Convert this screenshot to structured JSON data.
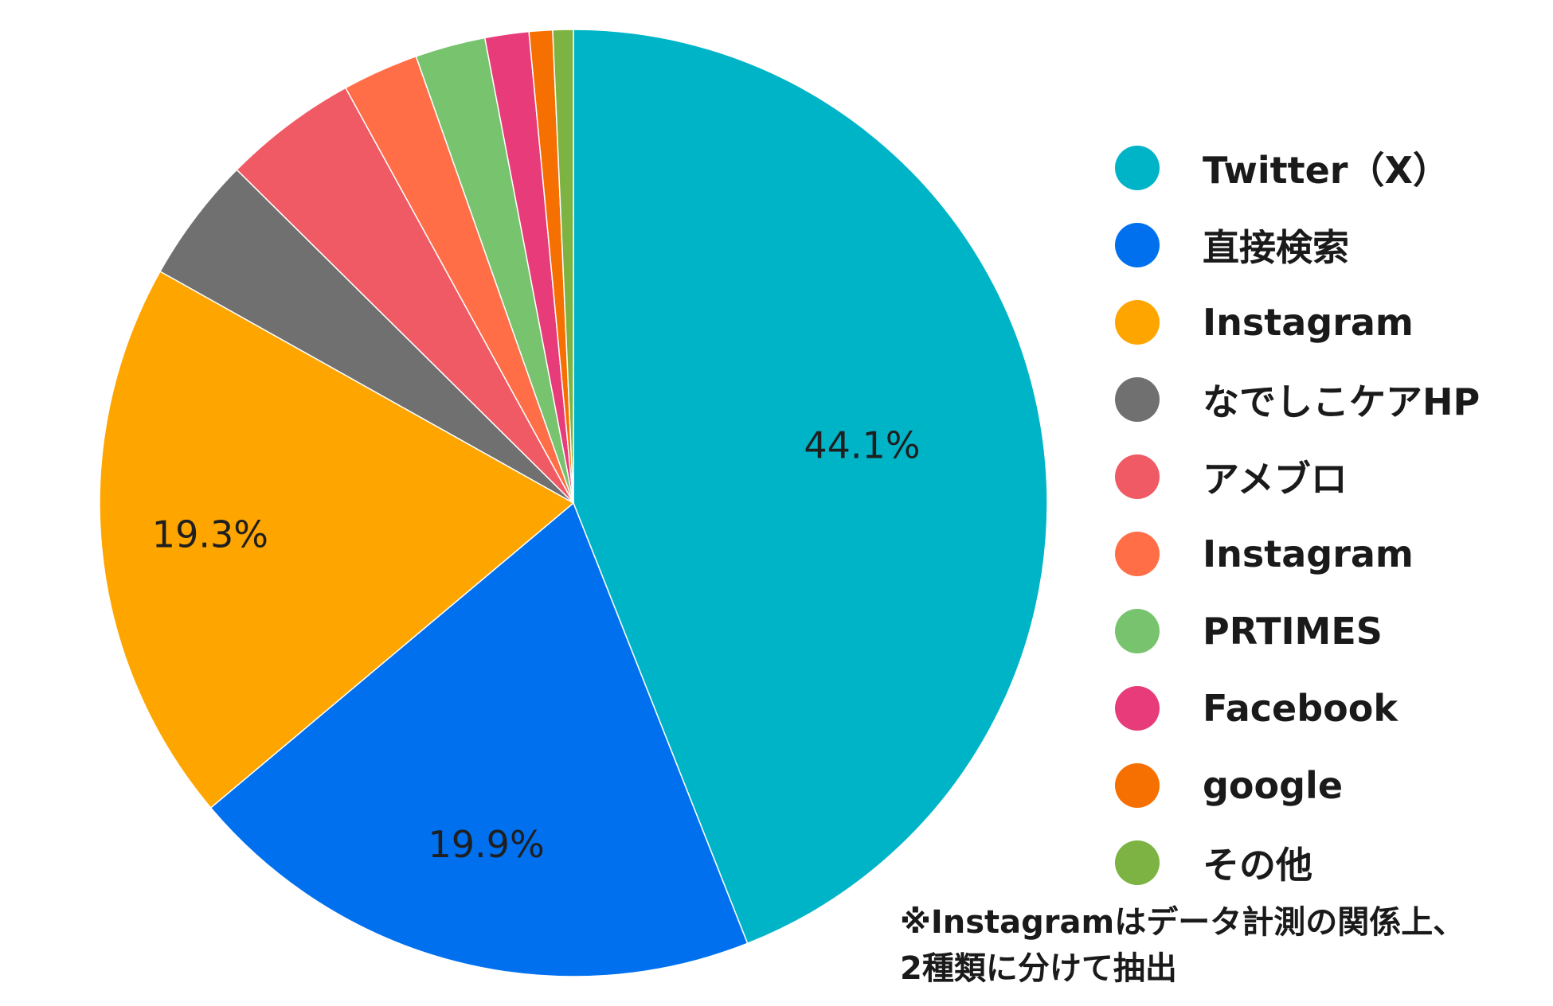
{
  "chart_data": {
    "type": "pie",
    "slices": [
      {
        "label": "Twitter（X）",
        "value": 44.1,
        "color": "#00B4C8",
        "data_label": "44.1%"
      },
      {
        "label": "直接検索",
        "value": 19.9,
        "color": "#0070EE",
        "data_label": "19.9%"
      },
      {
        "label": "Instagram",
        "value": 19.3,
        "color": "#FFA500",
        "data_label": "19.3%"
      },
      {
        "label": "なでしこケアHP",
        "value": 4.3,
        "color": "#707070",
        "data_label": ""
      },
      {
        "label": "アメブロ",
        "value": 4.6,
        "color": "#F05A64",
        "data_label": ""
      },
      {
        "label": "Instagram",
        "value": 2.6,
        "color": "#FF6E46",
        "data_label": ""
      },
      {
        "label": "PRTIMES",
        "value": 2.4,
        "color": "#78C36E",
        "data_label": ""
      },
      {
        "label": "Facebook",
        "value": 1.5,
        "color": "#E83C7A",
        "data_label": ""
      },
      {
        "label": "google",
        "value": 0.8,
        "color": "#F57000",
        "data_label": ""
      },
      {
        "label": "その他",
        "value": 0.7,
        "color": "#7CB342",
        "data_label": ""
      }
    ],
    "legend_position": "right",
    "note_lines": [
      "※Instagramはデータ計測の関係上、",
      "2種類に分けて抽出"
    ]
  }
}
